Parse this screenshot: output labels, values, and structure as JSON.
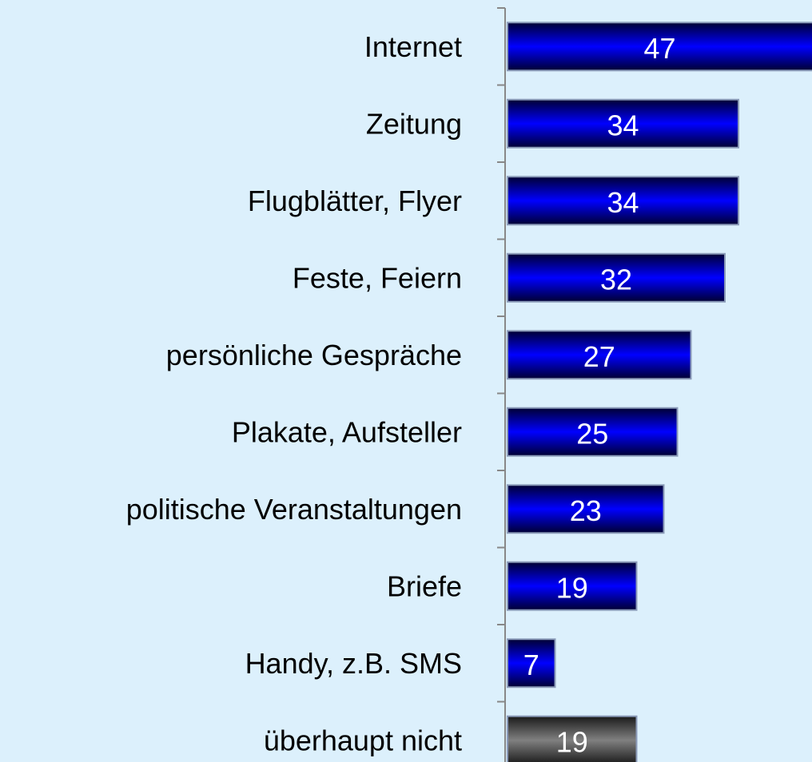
{
  "chart_data": {
    "type": "barh",
    "categories": [
      "Internet",
      "Zeitung",
      "Flugblätter, Flyer",
      "Feste, Feiern",
      "persönliche Gespräche",
      "Plakate, Aufsteller",
      "politische Veranstaltungen",
      "Briefe",
      "Handy, z.B. SMS",
      "überhaupt nicht"
    ],
    "values": [
      47,
      34,
      34,
      32,
      27,
      25,
      23,
      19,
      7,
      19
    ],
    "colors": [
      "#0000ff",
      "#0000ff",
      "#0000ff",
      "#0000ff",
      "#0000ff",
      "#0000ff",
      "#0000ff",
      "#0000ff",
      "#0000ff",
      "#808080"
    ]
  }
}
